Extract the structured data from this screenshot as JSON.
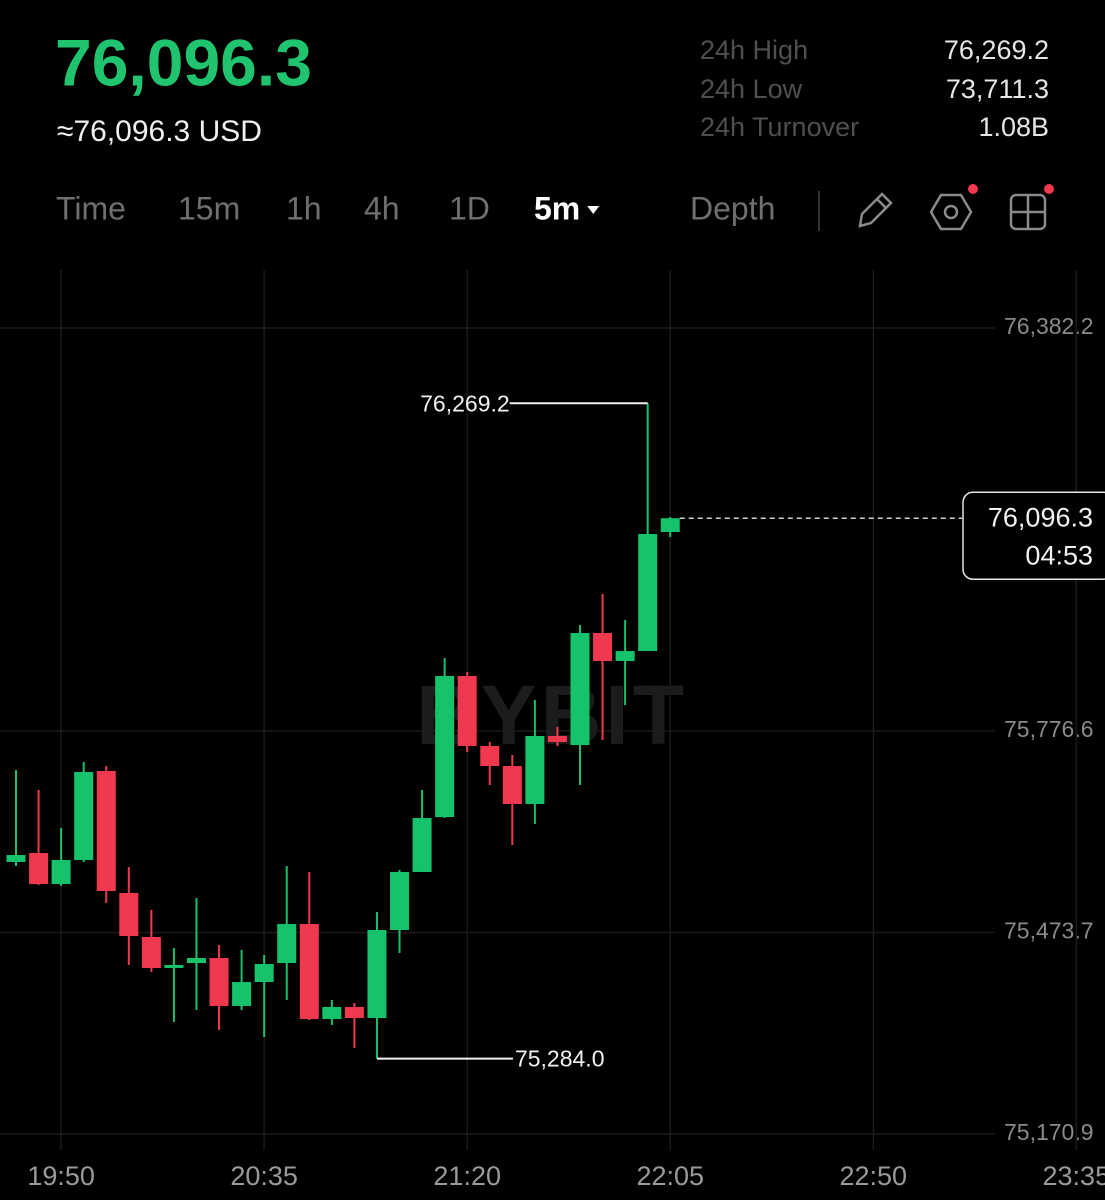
{
  "header": {
    "price": "76,096.3",
    "price_usd": "≈76,096.3 USD",
    "stats": [
      {
        "label": "24h High",
        "value": "76,269.2"
      },
      {
        "label": "24h Low",
        "value": "73,711.3"
      },
      {
        "label": "24h Turnover",
        "value": "1.08B"
      }
    ]
  },
  "tabs": [
    "Time",
    "15m",
    "1h",
    "4h",
    "1D",
    "5m",
    "Depth"
  ],
  "active_tab": "5m",
  "chart_data": {
    "type": "candlestick",
    "watermark": "BYBIT",
    "up_color": "#16c26b",
    "down_color": "#f0384f",
    "open": [
      75579.6,
      75593.1,
      75546.5,
      75582.6,
      75716.4,
      75533.0,
      75466.9,
      75420.3,
      75427.8,
      75435.3,
      75363.2,
      75399.2,
      75427.8,
      75486.4,
      75343.6,
      75361.7,
      75345.1,
      75477.4,
      75564.6,
      75647.2,
      75859.2,
      75753.9,
      75723.9,
      75666.8,
      75769.0,
      75755.4,
      75923.8,
      75881.7,
      75896.7,
      76075.6
    ],
    "high": [
      75717.9,
      75687.8,
      75630.7,
      75729.9,
      75723.9,
      75572.1,
      75507.5,
      75450.3,
      75525.5,
      75454.8,
      75447.3,
      75439.8,
      75573.6,
      75564.6,
      75372.2,
      75367.7,
      75504.4,
      75567.6,
      75687.8,
      75886.2,
      75865.2,
      75760.0,
      75740.4,
      75823.1,
      75782.5,
      75935.8,
      75982.4,
      75943.3,
      76269.2,
      76098.1
    ],
    "low": [
      75573.6,
      75545.0,
      75543.5,
      75579.6,
      75518.0,
      75424.8,
      75414.3,
      75339.1,
      75357.2,
      75327.1,
      75357.2,
      75316.6,
      75372.2,
      75342.1,
      75334.6,
      75300.0,
      75284.0,
      75442.8,
      75564.6,
      75645.7,
      75744.9,
      75695.3,
      75605.1,
      75636.7,
      75753.9,
      75695.3,
      75763.0,
      75815.6,
      75896.7,
      76068.1
    ],
    "close": [
      75590.1,
      75546.5,
      75582.6,
      75714.9,
      75536.0,
      75468.4,
      75420.3,
      75424.8,
      75435.3,
      75363.2,
      75399.2,
      75426.3,
      75486.4,
      75343.6,
      75361.7,
      75345.1,
      75477.4,
      75564.6,
      75645.7,
      75859.2,
      75753.9,
      75723.9,
      75666.8,
      75769.0,
      75760.0,
      75923.8,
      75881.7,
      75896.7,
      76072.6,
      76096.3
    ],
    "xtick_labels": [
      "19:50",
      "20:35",
      "21:20",
      "22:05",
      "22:50",
      "23:35"
    ],
    "ylim": [
      75131.7,
      76469.4
    ],
    "yticks": [
      {
        "value": 76382.2,
        "label": "76,382.2"
      },
      {
        "value": 75776.6,
        "label": "75,776.6"
      },
      {
        "value": 75473.7,
        "label": "75,473.7"
      },
      {
        "value": 75170.9,
        "label": "75,170.9"
      }
    ],
    "grid": true,
    "high_label": "76,269.2",
    "low_label": "75,284.0",
    "last_price_label": "76,096.3",
    "countdown": "04:53"
  }
}
